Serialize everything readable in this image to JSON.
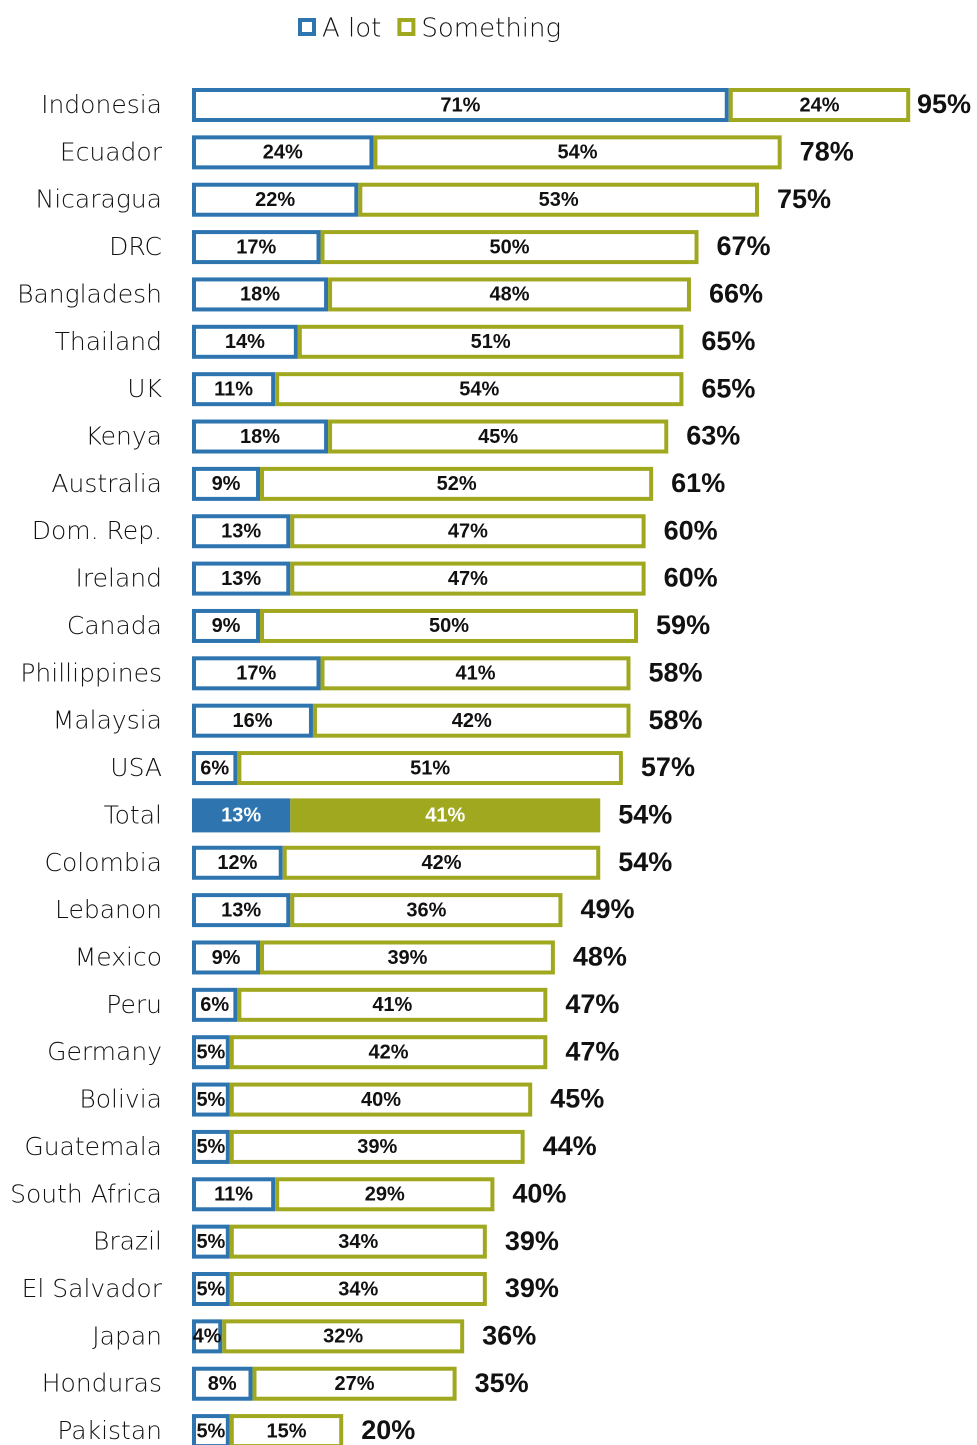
{
  "chart_data": {
    "type": "stacked-bar-horizontal",
    "categories": [
      "Indonesia",
      "Ecuador",
      "Nicaragua",
      "DRC",
      "Bangladesh",
      "Thailand",
      "UK",
      "Kenya",
      "Australia",
      "Dom. Rep.",
      "Ireland",
      "Canada",
      "Phillippines",
      "Malaysia",
      "USA",
      "Total",
      "Colombia",
      "Lebanon",
      "Mexico",
      "Peru",
      "Germany",
      "Bolivia",
      "Guatemala",
      "South Africa",
      "Brazil",
      "El Salvador",
      "Japan",
      "Honduras",
      "Pakistan"
    ],
    "series": [
      {
        "name": "A lot",
        "color": "#2e75b0",
        "values": [
          71,
          24,
          22,
          17,
          18,
          14,
          11,
          18,
          9,
          13,
          13,
          9,
          17,
          16,
          6,
          13,
          12,
          13,
          9,
          6,
          5,
          5,
          5,
          11,
          5,
          5,
          4,
          8,
          5
        ],
        "value_labels": [
          "71%",
          "24%",
          "22%",
          "17%",
          "18%",
          "14%",
          "11%",
          "18%",
          "9%",
          "13%",
          "13%",
          "9%",
          "17%",
          "16%",
          "6%",
          "13%",
          "12%",
          "13%",
          "9%",
          "6%",
          "5%",
          "5%",
          "5%",
          "11%",
          "5%",
          "5%",
          "4%",
          "8%",
          "5%"
        ]
      },
      {
        "name": "Something",
        "color": "#a0a820",
        "values": [
          24,
          54,
          53,
          50,
          48,
          51,
          54,
          45,
          52,
          47,
          47,
          50,
          41,
          42,
          51,
          41,
          42,
          36,
          39,
          41,
          42,
          40,
          39,
          29,
          34,
          34,
          32,
          27,
          15
        ],
        "value_labels": [
          "24%",
          "54%",
          "53%",
          "50%",
          "48%",
          "51%",
          "54%",
          "45%",
          "52%",
          "47%",
          "47%",
          "50%",
          "41%",
          "42%",
          "51%",
          "41%",
          "42%",
          "36%",
          "39%",
          "41%",
          "42%",
          "40%",
          "39%",
          "29%",
          "34%",
          "34%",
          "32%",
          "27%",
          "15%"
        ]
      }
    ],
    "totals": [
      95,
      78,
      75,
      67,
      66,
      65,
      65,
      63,
      61,
      60,
      60,
      59,
      58,
      58,
      57,
      54,
      54,
      49,
      48,
      47,
      47,
      45,
      44,
      40,
      39,
      39,
      36,
      35,
      20
    ],
    "total_labels": [
      "95%",
      "78%",
      "75%",
      "67%",
      "66%",
      "65%",
      "65%",
      "63%",
      "61%",
      "60%",
      "60%",
      "59%",
      "58%",
      "58%",
      "57%",
      "54%",
      "54%",
      "49%",
      "48%",
      "47%",
      "47%",
      "45%",
      "44%",
      "40%",
      "39%",
      "39%",
      "36%",
      "35%",
      "20%"
    ],
    "highlight": "Total",
    "legend": "top"
  }
}
